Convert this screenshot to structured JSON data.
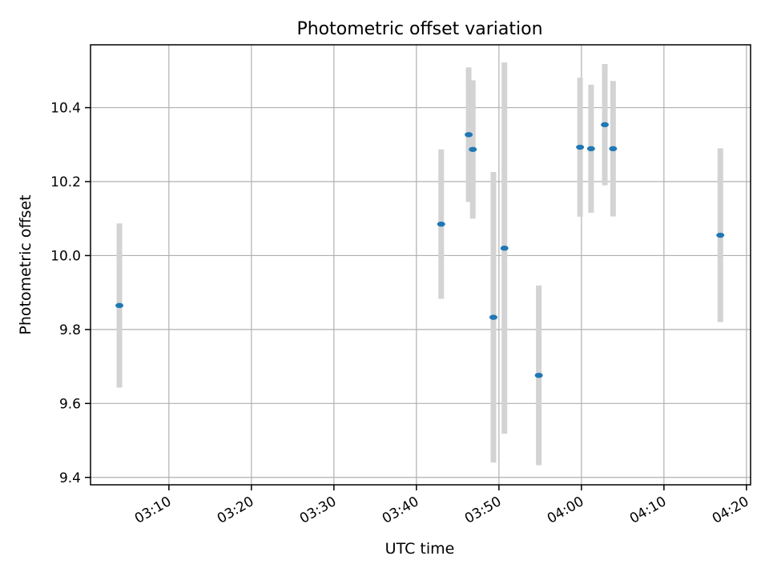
{
  "chart_data": {
    "type": "scatter",
    "title": "Photometric offset variation",
    "xlabel": "UTC time",
    "ylabel": "Photometric offset",
    "x_ticks": [
      "03:10",
      "03:20",
      "03:30",
      "03:40",
      "03:50",
      "04:00",
      "04:10",
      "04:20"
    ],
    "y_ticks": [
      "9.4",
      "9.6",
      "9.8",
      "10.0",
      "10.2",
      "10.4"
    ],
    "xlim": [
      "03:00:30",
      "04:20:30"
    ],
    "ylim": [
      9.38,
      10.57
    ],
    "grid": true,
    "x_tick_label_rotation": 30,
    "point_color": "#1f77b4",
    "errorbar_color": "#d3d3d3",
    "points": [
      {
        "x": "03:04:00",
        "y": 9.865,
        "err": 0.222
      },
      {
        "x": "03:43:00",
        "y": 10.085,
        "err": 0.202
      },
      {
        "x": "03:46:20",
        "y": 10.327,
        "err": 0.182
      },
      {
        "x": "03:46:50",
        "y": 10.287,
        "err": 0.187
      },
      {
        "x": "03:49:20",
        "y": 9.833,
        "err": 0.393
      },
      {
        "x": "03:50:40",
        "y": 10.02,
        "err": 0.502
      },
      {
        "x": "03:54:50",
        "y": 9.676,
        "err": 0.243
      },
      {
        "x": "03:59:50",
        "y": 10.293,
        "err": 0.188
      },
      {
        "x": "04:01:10",
        "y": 10.289,
        "err": 0.173
      },
      {
        "x": "04:02:50",
        "y": 10.354,
        "err": 0.164
      },
      {
        "x": "04:03:50",
        "y": 10.289,
        "err": 0.183
      },
      {
        "x": "04:16:50",
        "y": 10.055,
        "err": 0.235
      }
    ]
  }
}
